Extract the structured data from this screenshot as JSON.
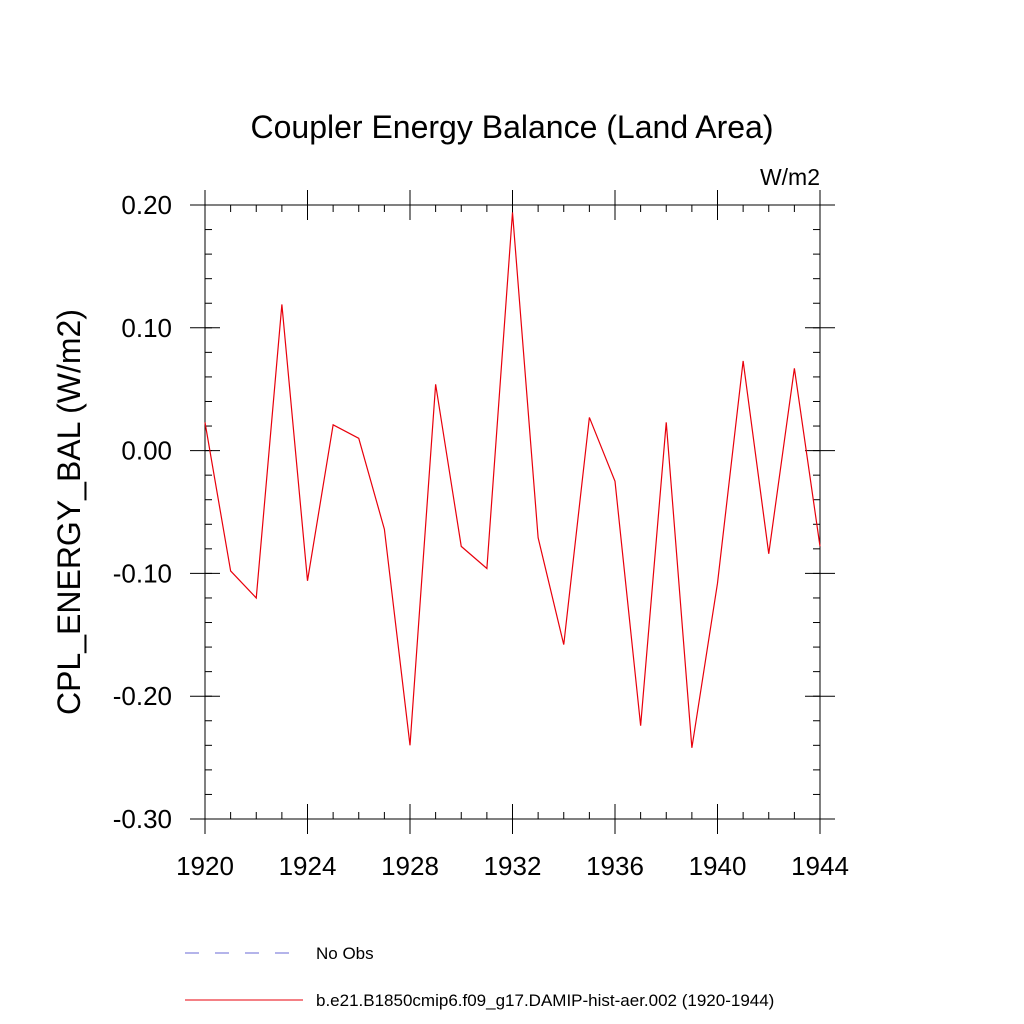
{
  "chart_data": {
    "type": "line",
    "title": "Coupler Energy Balance (Land Area)",
    "units_label": "W/m2",
    "ylabel": "CPL_ENERGY_BAL  (W/m2)",
    "xlabel": "",
    "xlim": [
      1920,
      1944
    ],
    "ylim": [
      -0.3,
      0.2
    ],
    "x_ticks": [
      1920,
      1924,
      1928,
      1932,
      1936,
      1940,
      1944
    ],
    "x_tick_labels": [
      "1920",
      "1924",
      "1928",
      "1932",
      "1936",
      "1940",
      "1944"
    ],
    "x_minor_step": 1,
    "y_ticks": [
      0.2,
      0.1,
      0.0,
      -0.1,
      -0.2,
      -0.3
    ],
    "y_tick_labels": [
      "0.20",
      "0.10",
      "0.00",
      "-0.10",
      "-0.20",
      "-0.30"
    ],
    "y_minor_step": 0.02,
    "grid": false,
    "legend_position": "bottom",
    "series": [
      {
        "name": "b.e21.B1850cmip6.f09_g17.DAMIP-hist-aer.002 (1920-1944)",
        "color": "#e8000b",
        "style": "solid",
        "x": [
          1920,
          1921,
          1922,
          1923,
          1924,
          1925,
          1926,
          1927,
          1928,
          1929,
          1930,
          1931,
          1932,
          1933,
          1934,
          1935,
          1936,
          1937,
          1938,
          1939,
          1940,
          1941,
          1942,
          1943,
          1944
        ],
        "values": [
          0.023,
          -0.098,
          -0.12,
          0.119,
          -0.106,
          0.021,
          0.01,
          -0.064,
          -0.24,
          0.054,
          -0.078,
          -0.096,
          0.194,
          -0.071,
          -0.158,
          0.027,
          -0.025,
          -0.224,
          0.023,
          -0.242,
          -0.108,
          0.073,
          -0.084,
          0.067,
          -0.078
        ]
      }
    ],
    "legend": [
      {
        "label": "No Obs",
        "color": "#6a6ad6",
        "style": "dashed"
      },
      {
        "label": "b.e21.B1850cmip6.f09_g17.DAMIP-hist-aer.002 (1920-1944)",
        "color": "#e8000b",
        "style": "solid"
      }
    ]
  }
}
